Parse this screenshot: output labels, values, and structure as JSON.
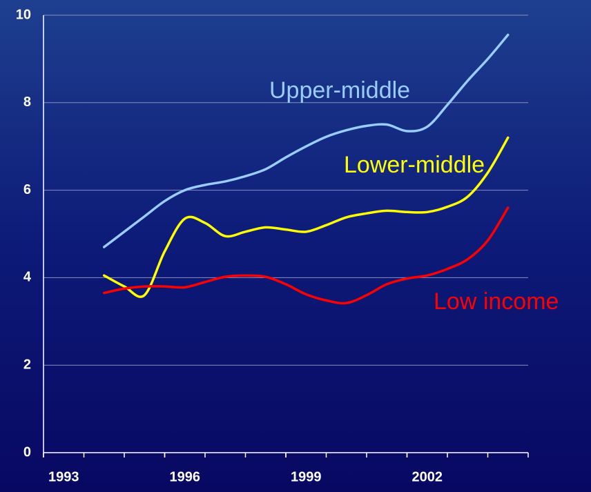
{
  "chart_data": {
    "type": "line",
    "x": [
      1994.5,
      1995,
      1995.5,
      1996,
      1996.5,
      1997,
      1997.5,
      1998,
      1998.5,
      1999,
      1999.5,
      2000,
      2000.5,
      2001,
      2001.5,
      2002,
      2002.5,
      2003,
      2003.5,
      2004,
      2004.5
    ],
    "series": [
      {
        "name": "Upper-middle",
        "color": "#99ccff",
        "values": [
          4.7,
          5.05,
          5.4,
          5.75,
          6.0,
          6.12,
          6.2,
          6.32,
          6.48,
          6.75,
          7.0,
          7.22,
          7.37,
          7.47,
          7.5,
          7.35,
          7.45,
          7.95,
          8.5,
          9.0,
          9.55
        ]
      },
      {
        "name": "Lower-middle",
        "color": "#ffff00",
        "values": [
          4.05,
          3.8,
          3.6,
          4.6,
          5.35,
          5.25,
          4.95,
          5.05,
          5.15,
          5.1,
          5.05,
          5.2,
          5.38,
          5.47,
          5.53,
          5.5,
          5.5,
          5.62,
          5.85,
          6.4,
          7.2
        ]
      },
      {
        "name": "Low income",
        "color": "#ff0000",
        "values": [
          3.65,
          3.75,
          3.8,
          3.8,
          3.78,
          3.9,
          4.02,
          4.05,
          4.02,
          3.85,
          3.62,
          3.48,
          3.42,
          3.6,
          3.85,
          3.98,
          4.05,
          4.2,
          4.42,
          4.85,
          5.6
        ]
      }
    ],
    "xlim": [
      1993,
      2005
    ],
    "xticks": [
      1993,
      1996,
      1999,
      2002
    ],
    "ylim": [
      0,
      10
    ],
    "yticks": [
      0,
      2,
      4,
      6,
      8,
      10
    ],
    "grid": true
  }
}
